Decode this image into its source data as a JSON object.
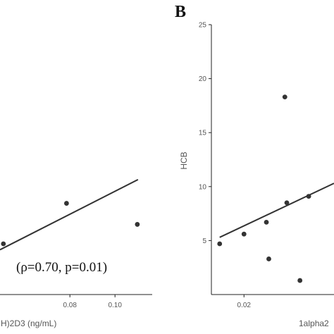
{
  "colors": {
    "points": "#333333",
    "line": "#333333",
    "axis": "#222222",
    "text": "#555555"
  },
  "chart_data": [
    {
      "type": "scatter",
      "panel_label": "",
      "xlabel": "H)2D3 (ng/mL)",
      "ylabel": "",
      "xlim": [
        0.049,
        0.1165
      ],
      "ylim": [
        0,
        25
      ],
      "x_ticks": [
        0.08,
        0.1
      ],
      "x_tick_labels": [
        "0.08",
        "0.10"
      ],
      "y_ticks": [],
      "y_tick_labels": [],
      "points": [
        {
          "x": 0.0785,
          "y": 8.45
        },
        {
          "x": 0.0505,
          "y": 4.7
        },
        {
          "x": 0.1099,
          "y": 6.5
        }
      ],
      "trend_line": {
        "x": [
          0.049,
          0.1102
        ],
        "y": [
          4.15,
          10.65
        ]
      },
      "annotation": "(ρ=0.70, p=0.01)"
    },
    {
      "type": "scatter",
      "panel_label": "B",
      "xlabel": "1alpha2",
      "ylabel": "HCB",
      "xlim": [
        0.0133,
        0.0385
      ],
      "ylim": [
        0,
        25
      ],
      "x_ticks": [
        0.02
      ],
      "x_tick_labels": [
        "0.02"
      ],
      "y_ticks": [
        5,
        10,
        15,
        20,
        25
      ],
      "y_tick_labels": [
        "5",
        "10",
        "15",
        "20",
        "25"
      ],
      "points": [
        {
          "x": 0.015,
          "y": 4.7
        },
        {
          "x": 0.02,
          "y": 5.6
        },
        {
          "x": 0.0246,
          "y": 6.7
        },
        {
          "x": 0.0251,
          "y": 3.3
        },
        {
          "x": 0.0284,
          "y": 18.3
        },
        {
          "x": 0.0288,
          "y": 8.5
        },
        {
          "x": 0.0315,
          "y": 1.3
        },
        {
          "x": 0.0333,
          "y": 9.1
        }
      ],
      "trend_line": {
        "x": [
          0.015,
          0.0385
        ],
        "y": [
          5.3,
          10.3
        ]
      }
    }
  ]
}
